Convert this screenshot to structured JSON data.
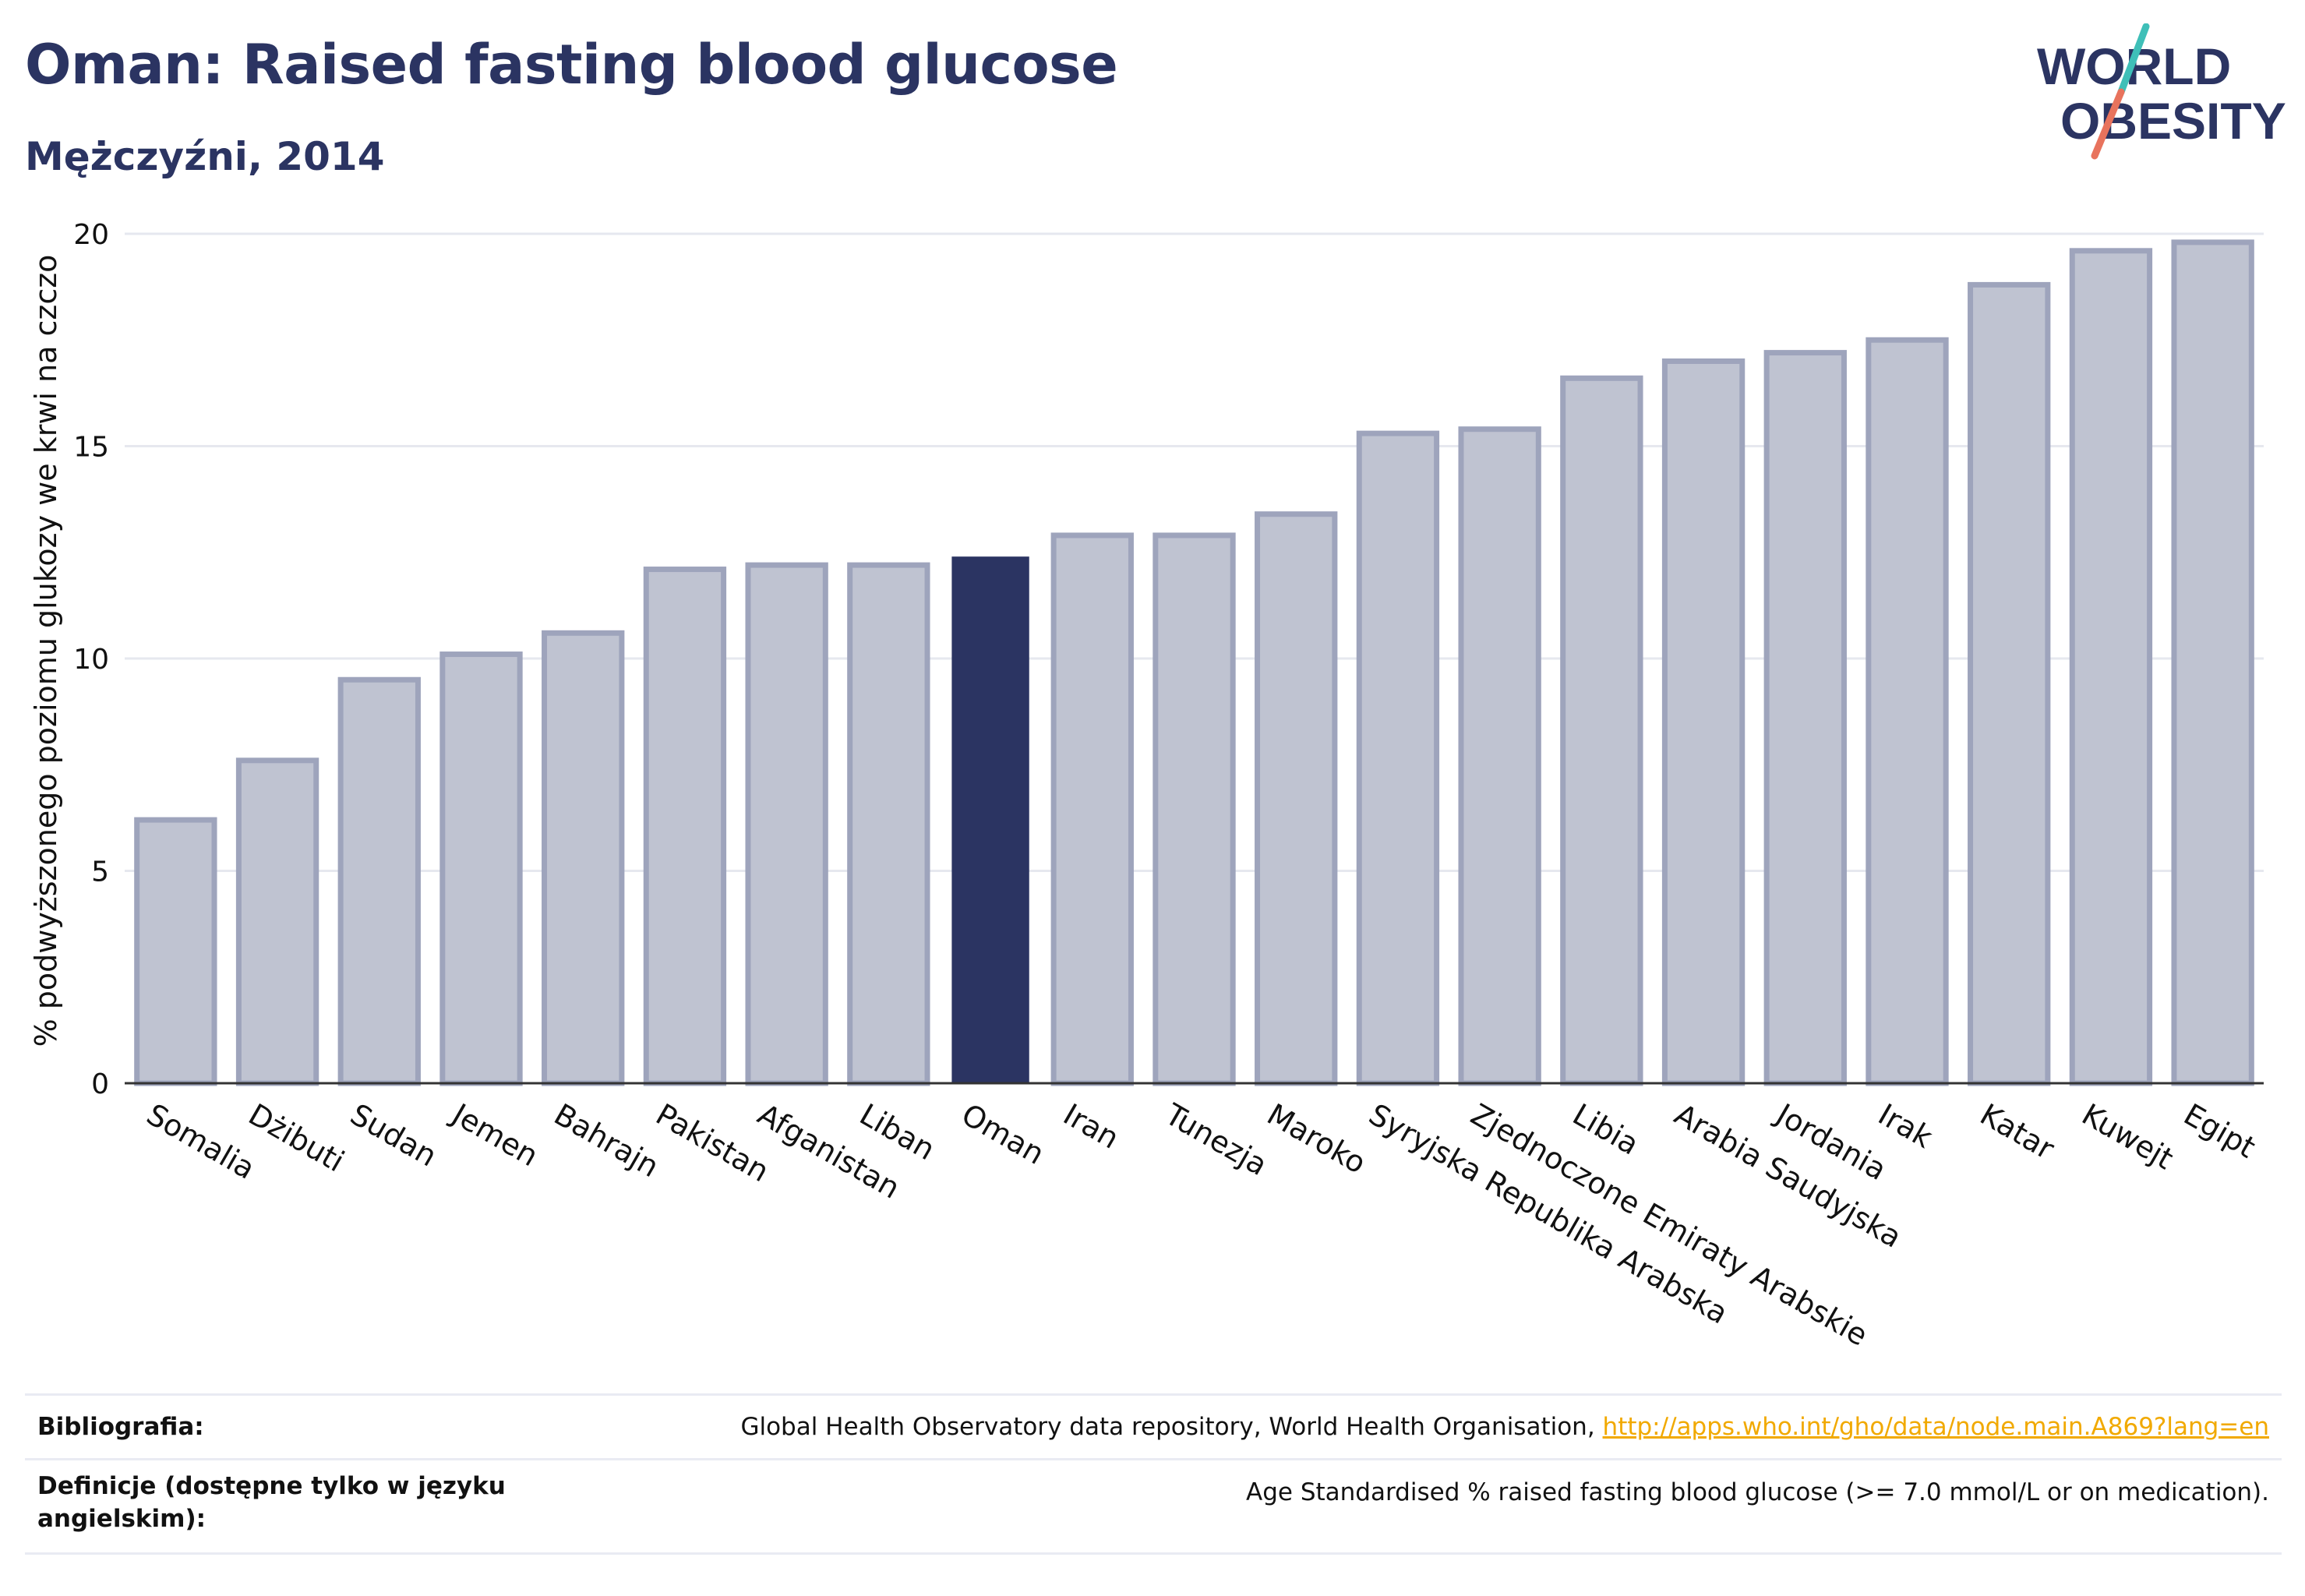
{
  "header": {
    "title": "Oman: Raised fasting blood glucose",
    "subtitle": "Mężczyźni, 2014"
  },
  "logo": {
    "line1": "WORLD",
    "line2": "OBESITY"
  },
  "colors": {
    "text": "#2b3462",
    "bar": "#bfc3d1",
    "bar_border": "#9ea4bc",
    "highlight": "#2b3462",
    "grid": "#e6e8ef",
    "logo_teal": "#3fbfb8",
    "logo_coral": "#e8735d",
    "link": "#f1a900"
  },
  "chart_data": {
    "type": "bar",
    "ylabel": "% podwyższonego poziomu glukozy we krwi na czczo",
    "ylim": [
      0,
      20
    ],
    "yticks": [
      0,
      5,
      10,
      15,
      20
    ],
    "grid": true,
    "highlight": "Oman",
    "categories": [
      "Somalia",
      "Dżibuti",
      "Sudan",
      "Jemen",
      "Bahrajn",
      "Pakistan",
      "Afganistan",
      "Liban",
      "Oman",
      "Iran",
      "Tunezja",
      "Maroko",
      "Syryjska Republika Arabska",
      "Zjednoczone Emiraty Arabskie",
      "Libia",
      "Arabia Saudyjska",
      "Jordania",
      "Irak",
      "Katar",
      "Kuwejt",
      "Egipt"
    ],
    "values": [
      6.2,
      7.6,
      9.5,
      10.1,
      10.6,
      12.1,
      12.2,
      12.2,
      12.4,
      12.9,
      12.9,
      13.4,
      15.3,
      15.4,
      16.6,
      17.0,
      17.2,
      17.5,
      18.8,
      19.6,
      19.8
    ]
  },
  "footer": {
    "source_label": "Bibliografia:",
    "source_text": "Global Health Observatory data repository, World Health Organisation, ",
    "source_link": "http://apps.who.int/gho/data/node.main.A869?lang=en",
    "definition_label": "Definicje (dostępne tylko w języku angielskim):",
    "definition_text": "Age Standardised % raised fasting blood glucose (>= 7.0 mmol/L or on medication)."
  }
}
